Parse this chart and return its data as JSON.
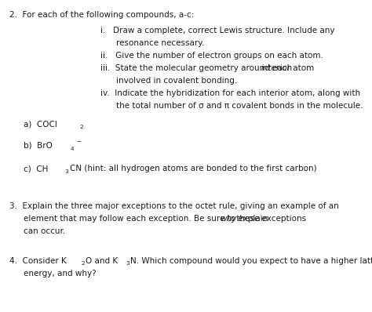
{
  "background_color": "#ffffff",
  "text_color": "#1a1a1a",
  "figsize": [
    4.74,
    3.98
  ],
  "dpi": 100,
  "font_main": 7.5,
  "font_sub": 5.2
}
